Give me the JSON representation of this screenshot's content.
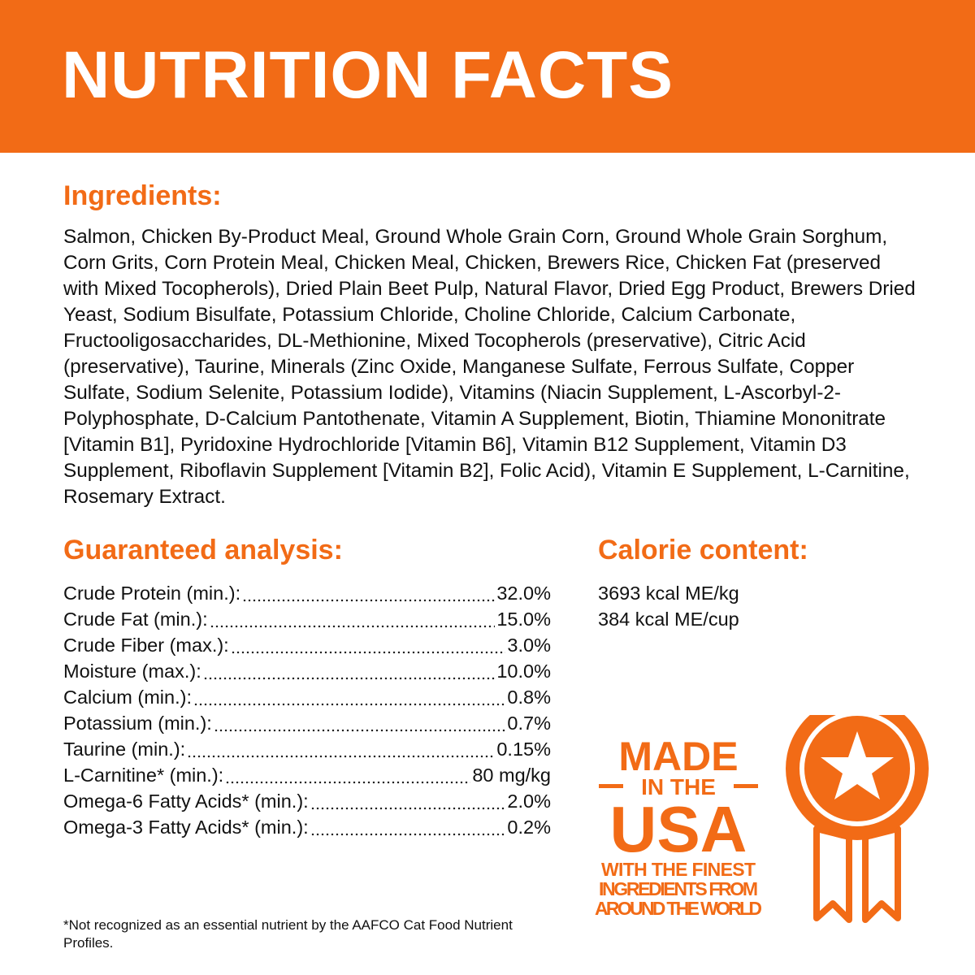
{
  "header": {
    "title": "NUTRITION FACTS"
  },
  "ingredients": {
    "heading": "Ingredients:",
    "text": "Salmon, Chicken By-Product Meal, Ground Whole Grain Corn, Ground Whole Grain Sorghum, Corn Grits, Corn Protein Meal, Chicken Meal, Chicken, Brewers Rice, Chicken Fat (preserved with Mixed Tocopherols), Dried Plain Beet Pulp, Natural Flavor, Dried Egg Product, Brewers Dried Yeast, Sodium Bisulfate, Potassium Chloride, Choline Chloride, Calcium Carbonate, Fructooligosaccharides, DL-Methionine, Mixed Tocopherols (preservative), Citric Acid (preservative), Taurine, Minerals (Zinc Oxide, Manganese Sulfate, Ferrous Sulfate, Copper Sulfate, Sodium Selenite, Potassium Iodide), Vitamins (Niacin Supplement, L-Ascorbyl-2-Polyphosphate, D-Calcium Pantothenate, Vitamin A Supplement, Biotin, Thiamine Mononitrate [Vitamin B1], Pyridoxine Hydrochloride [Vitamin B6], Vitamin B12 Supplement, Vitamin D3 Supplement, Riboflavin Supplement [Vitamin B2], Folic Acid), Vitamin E Supplement, L-Carnitine, Rosemary Extract."
  },
  "analysis": {
    "heading": "Guaranteed analysis:",
    "rows": [
      {
        "label": "Crude Protein (min.):",
        "value": "32.0%"
      },
      {
        "label": "Crude Fat (min.):",
        "value": "15.0%"
      },
      {
        "label": "Crude Fiber (max.):",
        "value": "3.0%"
      },
      {
        "label": "Moisture (max.):",
        "value": "10.0%"
      },
      {
        "label": "Calcium (min.):",
        "value": "0.8%"
      },
      {
        "label": "Potassium (min.):",
        "value": "0.7%"
      },
      {
        "label": "Taurine (min.):",
        "value": "0.15%"
      },
      {
        "label": "L-Carnitine* (min.):",
        "value": "80 mg/kg"
      },
      {
        "label": "Omega-6 Fatty Acids* (min.):",
        "value": "2.0%"
      },
      {
        "label": "Omega-3 Fatty Acids* (min.):",
        "value": "0.2%"
      }
    ]
  },
  "calories": {
    "heading": "Calorie content:",
    "lines": [
      "3693 kcal ME/kg",
      "384 kcal ME/cup"
    ]
  },
  "badge": {
    "line1": "MADE",
    "line2": "IN THE",
    "line3": "USA",
    "tagline": [
      "WITH THE FINEST",
      "INGREDIENTS FROM",
      "AROUND THE WORLD"
    ]
  },
  "footnote": "*Not recognized as an essential nutrient by the AAFCO Cat Food Nutrient Profiles."
}
